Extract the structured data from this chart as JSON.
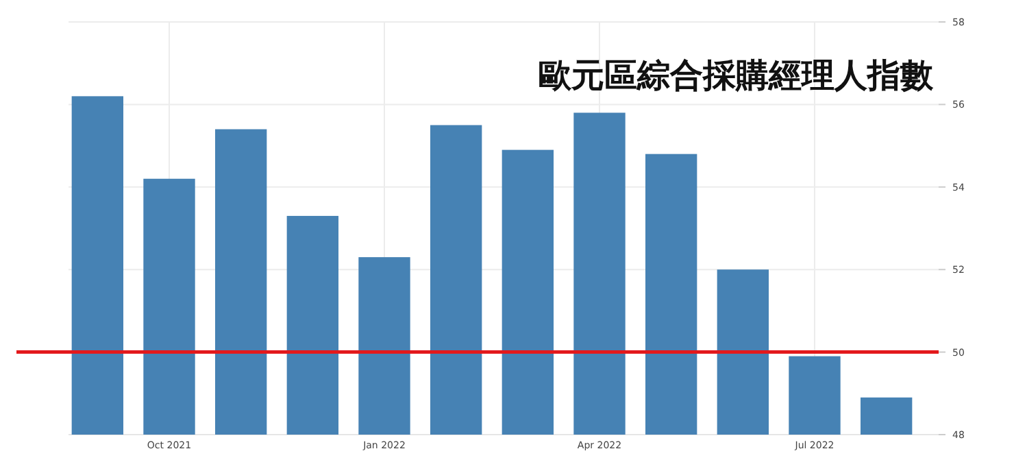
{
  "chart_data": {
    "type": "bar",
    "title": "歐元區綜合採購經理人指數",
    "categories": [
      null,
      "Oct 2021",
      null,
      null,
      "Jan 2022",
      null,
      null,
      "Apr 2022",
      null,
      null,
      "Jul 2022",
      null
    ],
    "values": [
      56.2,
      54.2,
      55.4,
      53.3,
      52.3,
      55.5,
      54.9,
      55.8,
      54.8,
      52.0,
      49.9,
      48.9
    ],
    "color": "#4682b4",
    "ylim": [
      48,
      58
    ],
    "yticks": [
      48,
      50,
      52,
      54,
      56,
      58
    ],
    "grid": true,
    "ref_lines": [
      {
        "axis": "y",
        "value": 50,
        "color": "#e3191c"
      }
    ]
  }
}
